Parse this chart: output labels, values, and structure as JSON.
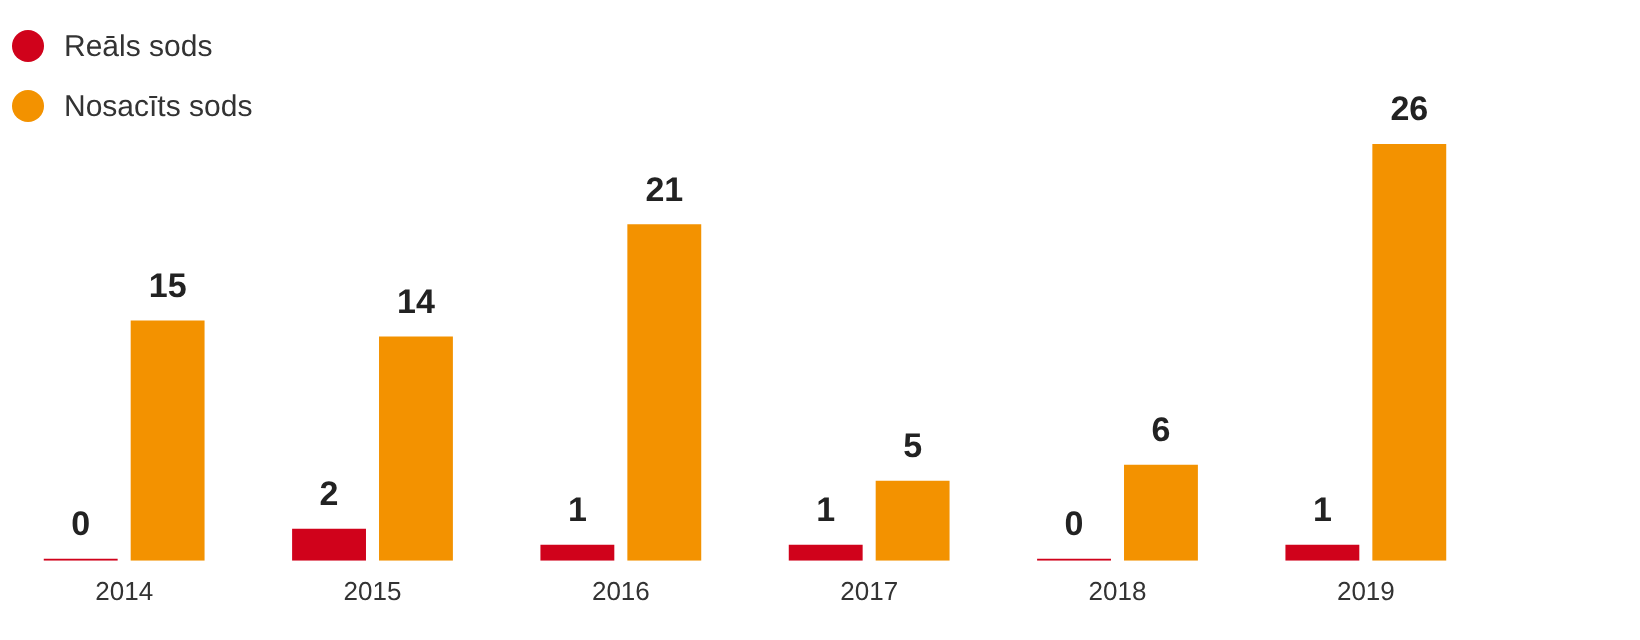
{
  "chart_data": {
    "type": "bar",
    "categories": [
      "2014",
      "2015",
      "2016",
      "2017",
      "2018",
      "2019"
    ],
    "series": [
      {
        "name": "Reāls sods",
        "color": "#d0021b",
        "values": [
          0,
          2,
          1,
          1,
          0,
          1
        ]
      },
      {
        "name": "Nosacīts sods",
        "color": "#f39200",
        "values": [
          15,
          14,
          21,
          5,
          6,
          26
        ]
      }
    ],
    "data_labels": true,
    "legend": "top left",
    "grid": false,
    "tick_labels": "x"
  }
}
